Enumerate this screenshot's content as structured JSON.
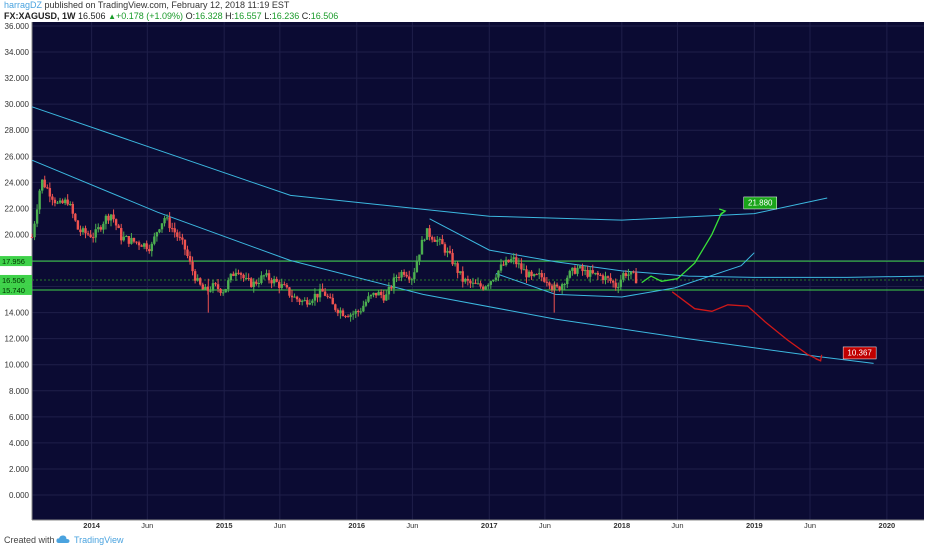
{
  "header": {
    "user": "harragDZ",
    "published": " published on TradingView.com, February 12, 2018 11:19 EST",
    "symbol": "FX:XAGUSD, 1W",
    "last": "16.506",
    "change": "+0.178 (+1.09%)",
    "open_label": "O:",
    "open": "16.328",
    "high_label": "H:",
    "high": "16.557",
    "low_label": "L:",
    "low": "16.236",
    "close_label": "C:",
    "close": "16.506"
  },
  "footer": {
    "created": "Created with",
    "brand": "TradingView"
  },
  "colors": {
    "background": "#0b0b33",
    "grid": "#1f1f4a",
    "up": "#4caf50",
    "down": "#ef5350",
    "channel": "#3cb8e0",
    "hline": "#3fd24a",
    "bull": "#38e038",
    "bear": "#d01818"
  },
  "chart_data": {
    "type": "line",
    "y_ticks": [
      "36.000",
      "34.000",
      "32.000",
      "30.000",
      "28.000",
      "26.000",
      "24.000",
      "22.000",
      "20.000",
      "18.000",
      "16.000",
      "14.000",
      "12.000",
      "10.000",
      "8.000",
      "6.000",
      "4.000",
      "2.000",
      "0.000"
    ],
    "ylim": [
      0,
      36
    ],
    "x_ticks": [
      {
        "label": "2014",
        "t": 2014.0
      },
      {
        "label": "Jun",
        "t": 2014.42
      },
      {
        "label": "2015",
        "t": 2015.0
      },
      {
        "label": "Jun",
        "t": 2015.42
      },
      {
        "label": "2016",
        "t": 2016.0
      },
      {
        "label": "Jun",
        "t": 2016.42
      },
      {
        "label": "2017",
        "t": 2017.0
      },
      {
        "label": "Jun",
        "t": 2017.42
      },
      {
        "label": "2018",
        "t": 2018.0
      },
      {
        "label": "Jun",
        "t": 2018.42
      },
      {
        "label": "2019",
        "t": 2019.0
      },
      {
        "label": "Jun",
        "t": 2019.42
      },
      {
        "label": "2020",
        "t": 2020.0
      }
    ],
    "xlim": [
      2013.55,
      2020.28
    ],
    "price_path": [
      [
        2013.55,
        19.8
      ],
      [
        2013.62,
        24.2
      ],
      [
        2013.68,
        23.3
      ],
      [
        2013.75,
        22.2
      ],
      [
        2013.82,
        22.6
      ],
      [
        2013.9,
        20.3
      ],
      [
        2013.95,
        20.1
      ],
      [
        2014.02,
        19.9
      ],
      [
        2014.1,
        21.2
      ],
      [
        2014.15,
        21.6
      ],
      [
        2014.22,
        19.8
      ],
      [
        2014.3,
        19.5
      ],
      [
        2014.38,
        19.3
      ],
      [
        2014.45,
        19.0
      ],
      [
        2014.5,
        20.5
      ],
      [
        2014.55,
        21.3
      ],
      [
        2014.62,
        20.3
      ],
      [
        2014.7,
        19.0
      ],
      [
        2014.75,
        17.5
      ],
      [
        2014.8,
        16.3
      ],
      [
        2014.85,
        15.6
      ],
      [
        2014.92,
        16.0
      ],
      [
        2015.0,
        15.7
      ],
      [
        2015.05,
        16.7
      ],
      [
        2015.1,
        17.5
      ],
      [
        2015.16,
        16.4
      ],
      [
        2015.22,
        16.2
      ],
      [
        2015.3,
        16.8
      ],
      [
        2015.38,
        16.4
      ],
      [
        2015.45,
        15.9
      ],
      [
        2015.52,
        15.2
      ],
      [
        2015.6,
        14.8
      ],
      [
        2015.68,
        15.3
      ],
      [
        2015.75,
        15.6
      ],
      [
        2015.82,
        14.5
      ],
      [
        2015.9,
        14.0
      ],
      [
        2015.96,
        13.9
      ],
      [
        2016.02,
        14.1
      ],
      [
        2016.08,
        15.0
      ],
      [
        2016.15,
        15.5
      ],
      [
        2016.22,
        15.2
      ],
      [
        2016.3,
        16.8
      ],
      [
        2016.36,
        17.2
      ],
      [
        2016.42,
        16.7
      ],
      [
        2016.46,
        18.3
      ],
      [
        2016.52,
        20.2
      ],
      [
        2016.58,
        19.8
      ],
      [
        2016.65,
        19.1
      ],
      [
        2016.72,
        18.0
      ],
      [
        2016.8,
        16.5
      ],
      [
        2016.88,
        16.1
      ],
      [
        2016.95,
        16.0
      ],
      [
        2017.02,
        16.6
      ],
      [
        2017.1,
        17.6
      ],
      [
        2017.18,
        18.1
      ],
      [
        2017.25,
        17.3
      ],
      [
        2017.32,
        16.6
      ],
      [
        2017.38,
        16.8
      ],
      [
        2017.45,
        16.5
      ],
      [
        2017.48,
        15.9
      ],
      [
        2017.52,
        15.8
      ],
      [
        2017.58,
        16.7
      ],
      [
        2017.66,
        17.4
      ],
      [
        2017.72,
        17.1
      ],
      [
        2017.78,
        16.9
      ],
      [
        2017.85,
        16.8
      ],
      [
        2017.92,
        16.4
      ],
      [
        2017.96,
        16.0
      ],
      [
        2018.02,
        17.1
      ],
      [
        2018.08,
        16.8
      ],
      [
        2018.12,
        16.5
      ]
    ],
    "annotations": [
      {
        "label": "17.956",
        "y": 17.956,
        "kind": "price-tag"
      },
      {
        "label": "16.506",
        "y": 16.506,
        "kind": "price-tag"
      },
      {
        "label": "15.740",
        "y": 15.74,
        "kind": "price-tag"
      },
      {
        "label": "21.880",
        "t": 2018.92,
        "y": 21.88,
        "kind": "target-bull"
      },
      {
        "label": "10.367",
        "t": 2019.67,
        "y": 10.367,
        "kind": "target-bear"
      }
    ],
    "horizontal_lines": [
      17.956,
      15.74
    ],
    "channel_lines": [
      {
        "points": [
          [
            2013.55,
            29.8
          ],
          [
            2015.5,
            23.0
          ],
          [
            2017.0,
            21.4
          ],
          [
            2018.0,
            21.1
          ],
          [
            2019.0,
            21.6
          ],
          [
            2019.55,
            22.8
          ]
        ]
      },
      {
        "points": [
          [
            2013.55,
            25.7
          ],
          [
            2014.5,
            21.7
          ],
          [
            2015.5,
            18.0
          ],
          [
            2016.5,
            15.4
          ],
          [
            2017.5,
            13.5
          ],
          [
            2018.5,
            12.0
          ],
          [
            2019.5,
            10.6
          ],
          [
            2019.9,
            10.1
          ]
        ]
      },
      {
        "points": [
          [
            2016.55,
            21.2
          ],
          [
            2017.0,
            18.8
          ],
          [
            2017.5,
            17.9
          ],
          [
            2018.0,
            17.2
          ],
          [
            2018.5,
            16.8
          ],
          [
            2019.0,
            16.7
          ],
          [
            2019.7,
            16.7
          ],
          [
            2020.28,
            16.8
          ]
        ]
      },
      {
        "points": [
          [
            2017.05,
            17.0
          ],
          [
            2017.5,
            15.4
          ],
          [
            2018.0,
            15.2
          ],
          [
            2018.4,
            15.9
          ],
          [
            2018.9,
            17.6
          ],
          [
            2019.0,
            18.6
          ]
        ]
      }
    ],
    "projection_bull": [
      [
        2018.15,
        16.3
      ],
      [
        2018.22,
        16.8
      ],
      [
        2018.3,
        16.4
      ],
      [
        2018.42,
        16.6
      ],
      [
        2018.55,
        17.8
      ],
      [
        2018.68,
        20.0
      ],
      [
        2018.75,
        21.6
      ],
      [
        2018.78,
        21.8
      ]
    ],
    "projection_bear": [
      [
        2018.38,
        15.6
      ],
      [
        2018.55,
        14.3
      ],
      [
        2018.68,
        14.1
      ],
      [
        2018.8,
        14.6
      ],
      [
        2018.95,
        14.5
      ],
      [
        2019.08,
        13.3
      ],
      [
        2019.25,
        11.9
      ],
      [
        2019.4,
        10.8
      ],
      [
        2019.5,
        10.3
      ]
    ]
  }
}
